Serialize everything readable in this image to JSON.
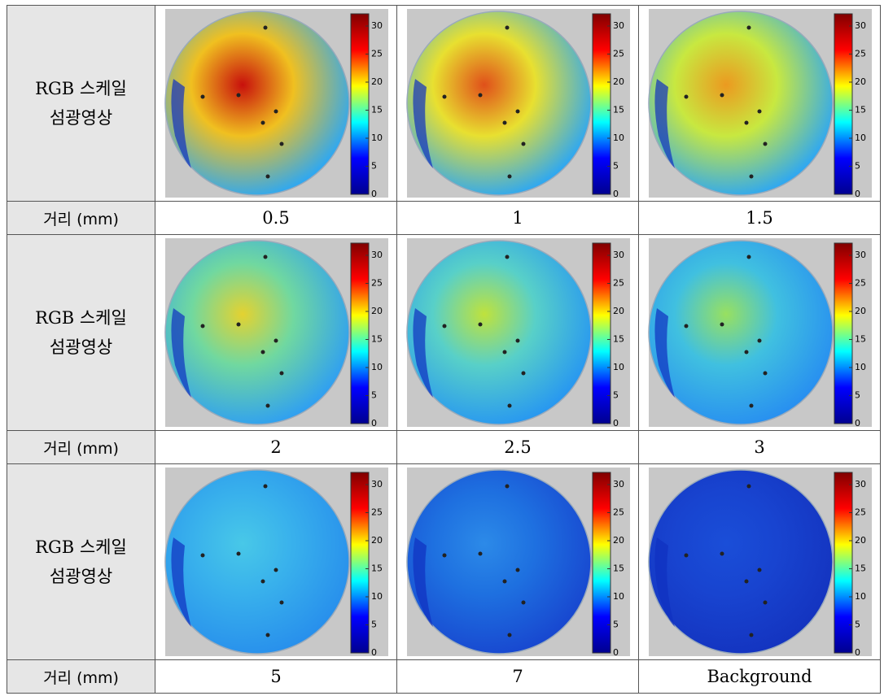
{
  "rows": [
    {
      "label": [
        "RGB 스케일",
        "섬광영상"
      ],
      "distance_label": "거리 (mm)",
      "distances": [
        "0.5",
        "1",
        "1.5"
      ]
    },
    {
      "label": [
        "RGB 스케일",
        "섬광영상"
      ],
      "distance_label": "거리 (mm)",
      "distances": [
        "2",
        "2.5",
        "3"
      ]
    },
    {
      "label": [
        "RGB 스케일",
        "섬광영상"
      ],
      "distance_label": "거리 (mm)",
      "distances": [
        "5",
        "7",
        "Background"
      ]
    }
  ],
  "colorbar_ticks": [
    0,
    5,
    10,
    15,
    20,
    25,
    30
  ]
}
